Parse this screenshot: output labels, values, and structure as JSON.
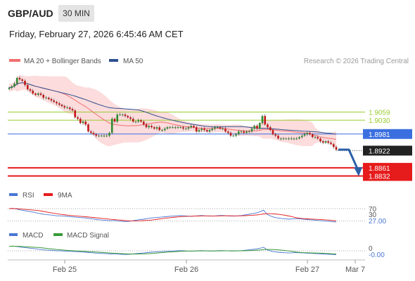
{
  "header": {
    "pair": "GBP/AUD",
    "timeframe": "30 MIN",
    "datetime": "Friday, February 27, 2026 6:45:46 AM CET"
  },
  "legend": {
    "ma20": {
      "label": "MA 20 + Bollinger Bands",
      "color": "#f07070"
    },
    "ma50": {
      "label": "MA 50",
      "color": "#2f4f8f"
    },
    "credit": "Research © 2026 Trading Central"
  },
  "rsi_legend": {
    "rsi": "RSI",
    "ma9": "9MA"
  },
  "macd_legend": {
    "macd": "MACD",
    "signal": "MACD Signal"
  },
  "chart_data": [
    {
      "type": "candlestick",
      "title": "GBP/AUD 30 MIN",
      "x_ticks": [
        "Feb 25",
        "Feb 26",
        "Feb 27",
        "Mar 7"
      ],
      "close_approx": [
        1.9145,
        1.915,
        1.916,
        1.918,
        1.9175,
        1.917,
        1.9155,
        1.914,
        1.9135,
        1.9125,
        1.912,
        1.9125,
        1.912,
        1.911,
        1.911,
        1.9105,
        1.91,
        1.9095,
        1.909,
        1.9085,
        1.908,
        1.9075,
        1.9075,
        1.907,
        1.9065,
        1.904,
        1.9035,
        1.902,
        1.9025,
        1.9015,
        1.899,
        1.8985,
        1.898,
        1.8975,
        1.8975,
        1.8975,
        1.8975,
        1.8975,
        1.8985,
        1.9035,
        1.9025,
        1.905,
        1.905,
        1.905,
        1.9045,
        1.904,
        1.9035,
        1.9025,
        1.9025,
        1.903,
        1.9025,
        1.9015,
        1.9005,
        1.901,
        1.9005,
        1.9,
        1.9005,
        1.8995,
        1.8995,
        1.9,
        1.9005,
        1.9005,
        1.9005,
        1.9005,
        1.9005,
        1.9005,
        1.9,
        1.9,
        1.9005,
        1.901,
        1.9005,
        1.899,
        1.8995,
        1.9,
        1.8995,
        1.899,
        1.8995,
        1.9,
        1.9005,
        1.9005,
        1.9,
        1.9,
        1.899,
        1.8985,
        1.8975,
        1.8975,
        1.898,
        1.899,
        1.899,
        1.8985,
        1.899,
        1.899,
        1.9,
        1.901,
        1.9,
        1.902,
        1.9045,
        1.9015,
        1.9005,
        1.8995,
        1.898,
        1.8975,
        1.8965,
        1.8965,
        1.8965,
        1.8965,
        1.8965,
        1.8965,
        1.8965,
        1.8965,
        1.897,
        1.8975,
        1.898,
        1.8985,
        1.898,
        1.897,
        1.897,
        1.8965,
        1.8955,
        1.895,
        1.8955,
        1.895,
        1.8945,
        1.8935,
        1.8925
      ],
      "levels": [
        {
          "label": "1.9059",
          "value": 1.9059,
          "color": "#9acd32",
          "kind": "resistance"
        },
        {
          "label": "1.9030",
          "value": 1.903,
          "color": "#9acd32",
          "kind": "resistance"
        },
        {
          "label": "1.8981",
          "value": 1.8981,
          "color": "#3b6fe0",
          "kind": "pivot"
        },
        {
          "label": "1.8922",
          "value": 1.8922,
          "color": "#222222",
          "kind": "last"
        },
        {
          "label": "1.8861",
          "value": 1.8861,
          "color": "#e61b1b",
          "kind": "target"
        },
        {
          "label": "1.8832",
          "value": 1.8832,
          "color": "#e61b1b",
          "kind": "target"
        }
      ],
      "series": [
        {
          "name": "MA 20 + Bollinger Bands",
          "color": "#f07070"
        },
        {
          "name": "MA 50",
          "color": "#2f4f8f"
        }
      ],
      "forecast": "bearish arrow toward 1.8861"
    },
    {
      "type": "line",
      "title": "RSI",
      "series": [
        {
          "name": "RSI",
          "color": "#4a77d4"
        },
        {
          "name": "9MA",
          "color": "#e61b1b"
        }
      ],
      "levels": [
        {
          "label": "70",
          "value": 70
        },
        {
          "label": "30",
          "value": 30
        },
        {
          "label": "27.00",
          "value": 27.0
        }
      ],
      "rsi_values": [
        70,
        71,
        69,
        66,
        64,
        62,
        60,
        58,
        55,
        53,
        51,
        50,
        49,
        47,
        47,
        46,
        45,
        44,
        43,
        42,
        41,
        40,
        38,
        37,
        35,
        34,
        33,
        32,
        31,
        32,
        30,
        29,
        28,
        29,
        31,
        33,
        35,
        36,
        38,
        40,
        41,
        42,
        43,
        44,
        45,
        46,
        47,
        48,
        47,
        46,
        45,
        46,
        47,
        48,
        47,
        46,
        46,
        47,
        48,
        48,
        47,
        46,
        46,
        47,
        48,
        50,
        52,
        54,
        56,
        60,
        65,
        52,
        46,
        42,
        40,
        38,
        37,
        36,
        37,
        38,
        37,
        36,
        35,
        34,
        33,
        32,
        31,
        30,
        29,
        28,
        27
      ]
    },
    {
      "type": "line",
      "title": "MACD",
      "series": [
        {
          "name": "MACD",
          "color": "#4a77d4"
        },
        {
          "name": "MACD Signal",
          "color": "#3a9a3a"
        }
      ],
      "levels": [
        {
          "label": "0",
          "value": 0
        },
        {
          "label": "-0.00",
          "value": -0.0
        }
      ]
    }
  ],
  "axis": {
    "ticks": [
      "Feb 25",
      "Feb 26",
      "Feb 27",
      "Mar 7"
    ]
  }
}
